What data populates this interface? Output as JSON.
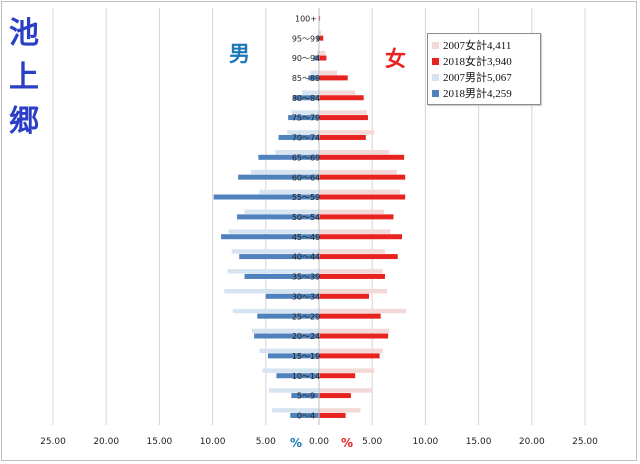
{
  "page": {
    "vertical_title": "池上郷",
    "male_label": "男",
    "female_label": "女",
    "male_pct": "%",
    "female_pct": "%"
  },
  "chart_data": {
    "type": "bar",
    "orientation": "horizontal",
    "layout": "population pyramid (male left, female right)",
    "categories": [
      "0～4",
      "5～9",
      "10～14",
      "15～19",
      "20～24",
      "25～29",
      "30～34",
      "35～39",
      "40～44",
      "45～49",
      "50～54",
      "55～59",
      "60～64",
      "65～69",
      "70～74",
      "75～79",
      "80～84",
      "85～89",
      "90～94",
      "95～99",
      "100+"
    ],
    "x_tick_labels": [
      "25.00",
      "20.00",
      "15.00",
      "10.00",
      "5.00",
      "0.00",
      "5.00",
      "10.00",
      "15.00",
      "20.00",
      "25.00"
    ],
    "xlim": [
      -25,
      25
    ],
    "legend_position": "top-right",
    "grid": "vertical gridlines",
    "series": [
      {
        "name": "2007女計4,411",
        "side": "female",
        "color": "#f3d8d8",
        "values": [
          3.9,
          5.0,
          5.2,
          6.0,
          6.6,
          8.2,
          6.4,
          6.0,
          6.2,
          6.7,
          6.1,
          7.6,
          7.3,
          6.6,
          5.2,
          4.5,
          3.4,
          1.7,
          0.6,
          0.2,
          0.05
        ]
      },
      {
        "name": "2018女計3,940",
        "side": "female",
        "color": "#e8231f",
        "values": [
          2.5,
          3.0,
          3.4,
          5.7,
          6.5,
          5.8,
          4.7,
          6.2,
          7.4,
          7.8,
          7.0,
          8.1,
          8.1,
          8.0,
          4.4,
          4.6,
          4.2,
          2.7,
          0.7,
          0.4,
          0.1
        ]
      },
      {
        "name": "2007男計5,067",
        "side": "male",
        "color": "#d6e4f2",
        "values": [
          4.4,
          4.7,
          5.3,
          5.6,
          6.3,
          8.1,
          8.9,
          8.6,
          8.2,
          8.5,
          7.0,
          5.6,
          6.4,
          4.1,
          3.0,
          2.6,
          1.6,
          0.8,
          0.2,
          0.1,
          0.0
        ]
      },
      {
        "name": "2018男計4,259",
        "side": "male",
        "color": "#4f81bd",
        "values": [
          2.7,
          2.6,
          4.0,
          4.8,
          6.1,
          5.8,
          5.0,
          7.0,
          7.5,
          9.2,
          7.7,
          9.9,
          7.6,
          5.7,
          3.8,
          2.9,
          2.4,
          1.0,
          0.5,
          0.2,
          0.05
        ]
      }
    ]
  }
}
